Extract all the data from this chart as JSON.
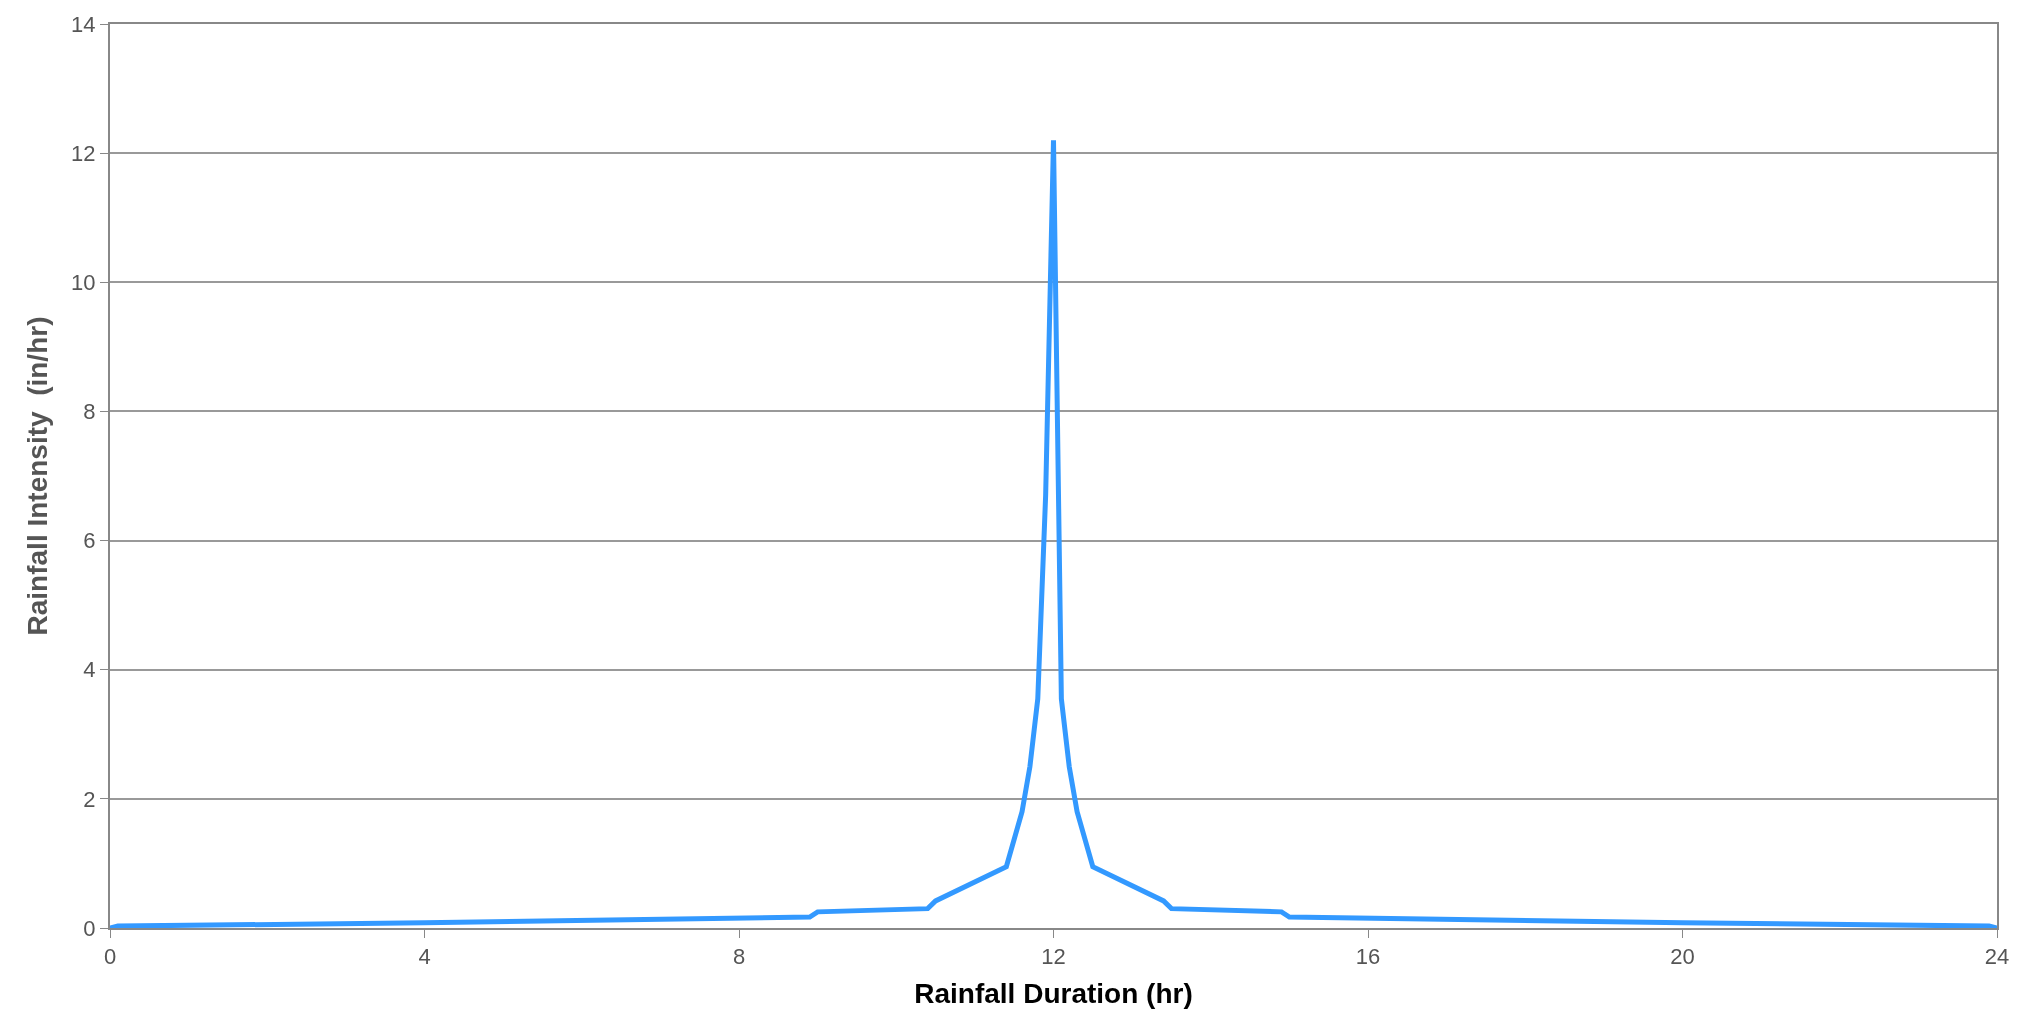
{
  "chart_data": {
    "type": "line",
    "xlabel": "Rainfall Duration (hr)",
    "ylabel": "Rainfall Intensity  (in/hr)",
    "x": [
      0,
      0.1,
      4,
      8.9,
      9.0,
      10.4,
      10.5,
      11.4,
      11.6,
      11.7,
      11.8,
      11.9,
      12.0,
      12.1,
      12.2,
      12.3,
      12.5,
      13.4,
      13.5,
      14.9,
      15.0,
      20,
      23.9,
      24
    ],
    "series": [
      {
        "color": "#3399ff",
        "values": [
          0,
          0.03,
          0.08,
          0.17,
          0.25,
          0.3,
          0.42,
          0.95,
          1.8,
          2.5,
          3.55,
          6.7,
          12.2,
          3.55,
          2.5,
          1.8,
          0.95,
          0.42,
          0.3,
          0.25,
          0.17,
          0.08,
          0.03,
          0
        ]
      }
    ],
    "xlim": [
      0,
      24
    ],
    "xticks": [
      0,
      4,
      8,
      12,
      16,
      20,
      24
    ],
    "ylim": [
      0,
      14
    ],
    "yticks": [
      0,
      2,
      4,
      6,
      8,
      10,
      12,
      14
    ],
    "grid": "y",
    "marker": "none",
    "line_style": "solid"
  }
}
